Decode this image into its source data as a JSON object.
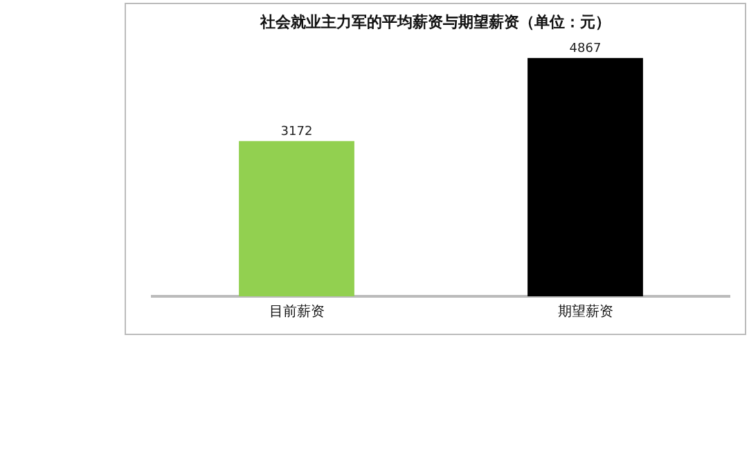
{
  "chart_data": {
    "type": "bar",
    "title": "社会就业主力军的平均薪资与期望薪资（单位：元）",
    "categories": [
      "目前薪资",
      "期望薪资"
    ],
    "values": [
      3172,
      4867
    ],
    "colors": [
      "#92d050",
      "#000000"
    ],
    "relative": false,
    "data_labels": true,
    "grid": false,
    "legend": false
  }
}
